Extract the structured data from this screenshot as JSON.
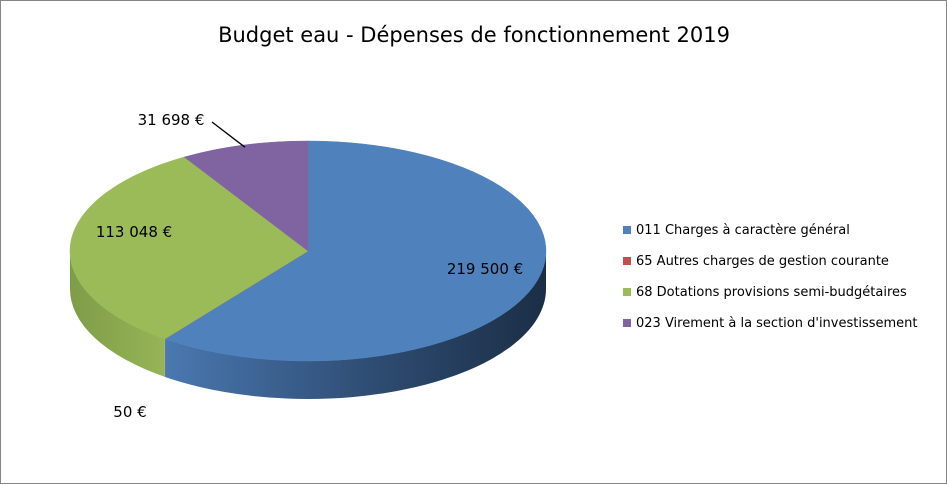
{
  "chart_data": {
    "type": "pie",
    "title": "Budget eau - Dépenses de fonctionnement 2019",
    "categories": [
      "011 Charges à caractère général",
      "65 Autres charges de gestion courante",
      "68 Dotations provisions semi-budgétaires",
      "023 Virement à la section d'investissement"
    ],
    "values": [
      219500,
      50,
      113048,
      31698
    ],
    "data_labels": [
      "219 500 €",
      "50 €",
      "113 048 €",
      "31 698 €"
    ],
    "colors": [
      "#4F81BD",
      "#C0504D",
      "#9BBB59",
      "#8064A2"
    ],
    "legend_position": "right",
    "style": "3d"
  }
}
